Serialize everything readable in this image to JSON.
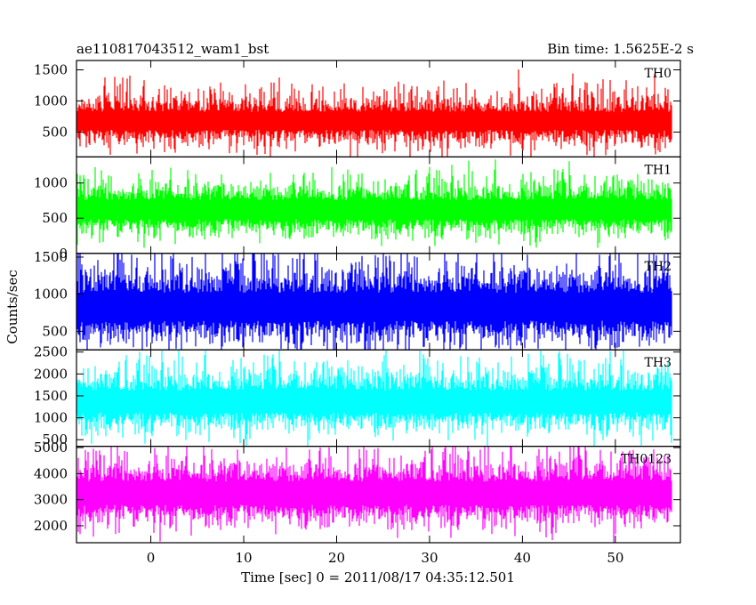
{
  "chart_data": {
    "type": "line",
    "title_left": "ae110817043512_wam1_bst",
    "title_right": "Bin time: 1.5625E-2 s",
    "xlabel": "Time [sec] 0 = 2011/08/17 04:35:12.501",
    "ylabel": "Counts/sec",
    "xlim": [
      -8,
      57
    ],
    "x_ticks": [
      0,
      10,
      20,
      30,
      40,
      50
    ],
    "x_range": [
      -8,
      56
    ],
    "grid": false,
    "panels": [
      {
        "name": "TH0",
        "color": "#ff0000",
        "ylim": [
          100,
          1650
        ],
        "y_ticks": [
          500,
          1000,
          1500
        ],
        "baseline": 100,
        "mean": 680,
        "spread": 160,
        "max_spike": 1650
      },
      {
        "name": "TH1",
        "color": "#00ff00",
        "ylim": [
          0,
          1370
        ],
        "y_ticks": [
          0,
          500,
          1000
        ],
        "baseline": 80,
        "mean": 620,
        "spread": 150,
        "max_spike": 1370
      },
      {
        "name": "TH2",
        "color": "#0000ff",
        "ylim": [
          250,
          1550
        ],
        "y_ticks": [
          500,
          1000,
          1500
        ],
        "baseline": 250,
        "mean": 830,
        "spread": 210,
        "max_spike": 1550
      },
      {
        "name": "TH3",
        "color": "#00ffff",
        "ylim": [
          350,
          2550
        ],
        "y_ticks": [
          500,
          1000,
          1500,
          2000,
          2500
        ],
        "baseline": 350,
        "mean": 1370,
        "spread": 280,
        "max_spike": 2550
      },
      {
        "name": "TH0123",
        "color": "#ff00ff",
        "ylim": [
          1350,
          5050
        ],
        "y_ticks": [
          2000,
          3000,
          4000,
          5000
        ],
        "baseline": 1350,
        "mean": 3250,
        "spread": 500,
        "max_spike": 5050
      }
    ]
  }
}
